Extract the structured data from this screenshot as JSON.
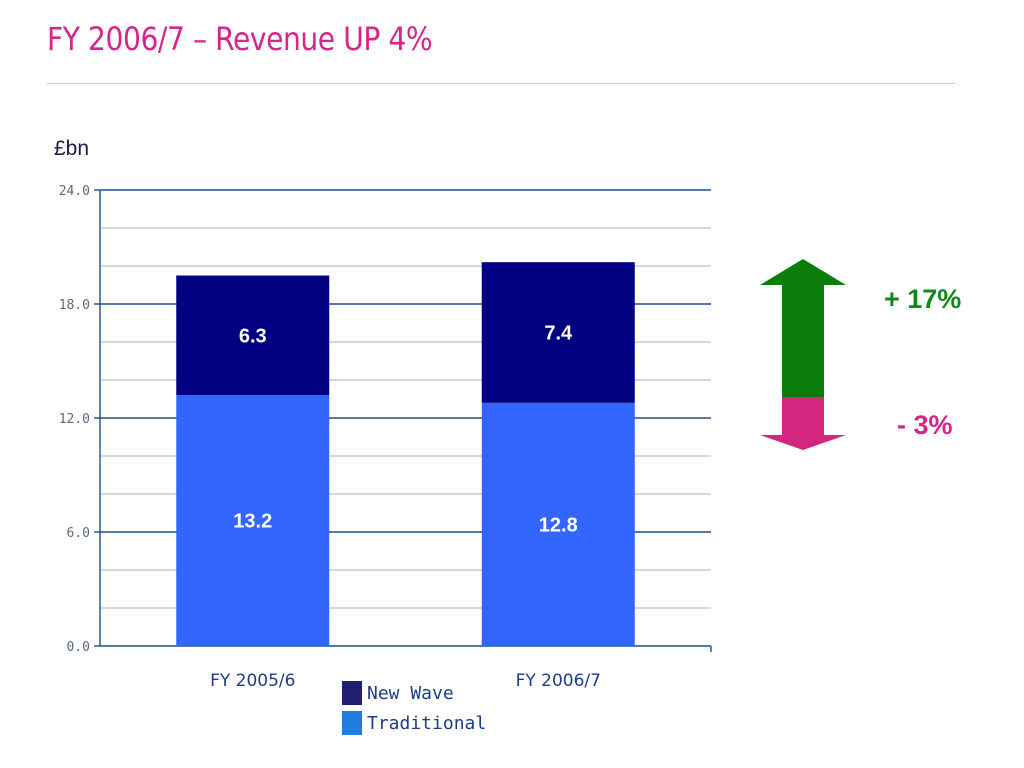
{
  "slide": {
    "title": "FY 2006/7 – Revenue UP 4%",
    "unit_label": "£bn"
  },
  "chart_data": {
    "type": "bar",
    "stacked": true,
    "categories": [
      "FY 2005/6",
      "FY 2006/7"
    ],
    "series": [
      {
        "name": "Traditional",
        "values": [
          13.2,
          12.8
        ],
        "color": "#3366ff"
      },
      {
        "name": "New Wave",
        "values": [
          6.3,
          7.4
        ],
        "color": "#000080"
      }
    ],
    "ylim": [
      0,
      24
    ],
    "yticks": [
      "0.0",
      "6.0",
      "12.0",
      "18.0",
      "24.0"
    ],
    "ylabel": "£bn",
    "grid": true,
    "legend_placement": "bottom-center"
  },
  "legend": {
    "items": [
      {
        "label": "New Wave",
        "color": "#1f1f6e"
      },
      {
        "label": "Traditional",
        "color": "#1e7fe0"
      }
    ]
  },
  "changes": {
    "up": {
      "label": "+ 17%",
      "color": "#0f8a1a"
    },
    "down": {
      "label": "- 3%",
      "color": "#d9248a"
    }
  }
}
